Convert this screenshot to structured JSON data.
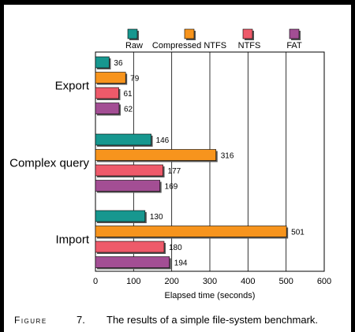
{
  "caption": {
    "label": "Figure",
    "number": "7.",
    "text": "The results of a simple file-system benchmark."
  },
  "chart_data": {
    "type": "bar",
    "orientation": "horizontal",
    "categories": [
      "Export",
      "Complex query",
      "Import"
    ],
    "series": [
      {
        "name": "Raw",
        "color": "#17978f",
        "values": [
          36,
          146,
          130
        ]
      },
      {
        "name": "Compressed NTFS",
        "color": "#f7941d",
        "values": [
          79,
          316,
          501
        ]
      },
      {
        "name": "NTFS",
        "color": "#ee5a6a",
        "values": [
          61,
          177,
          180
        ]
      },
      {
        "name": "FAT",
        "color": "#a34e94",
        "values": [
          62,
          169,
          194
        ]
      }
    ],
    "xlabel": "Elapsed time (seconds)",
    "ylabel": "",
    "xlim": [
      0,
      600
    ],
    "xticks": [
      0,
      100,
      200,
      300,
      400,
      500,
      600
    ],
    "grid": true,
    "legend_position": "top"
  }
}
